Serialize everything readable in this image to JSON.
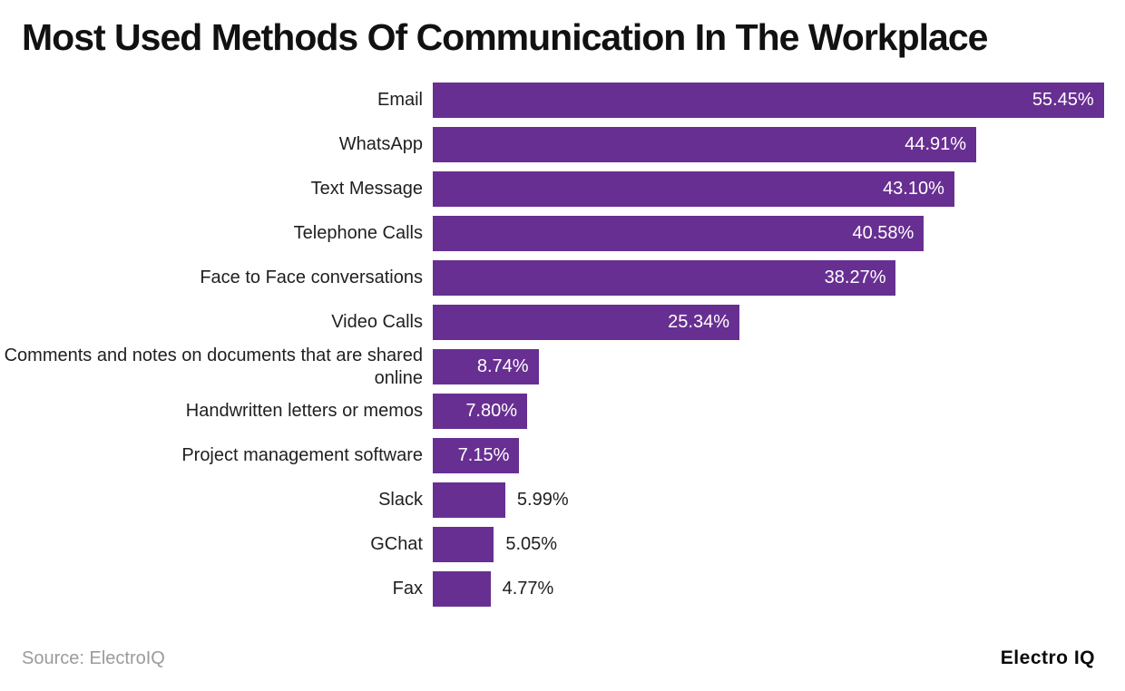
{
  "header": {
    "title": "Most Used Methods Of Communication In The Workplace"
  },
  "footer": {
    "source": "Source: ElectroIQ",
    "brand": "Electro IQ"
  },
  "colors": {
    "background": "#FFFFFF",
    "bar": "#682F92",
    "title": "#111111",
    "category_label": "#1F1F1F",
    "value_inside": "#FFFFFF",
    "value_outside": "#1F1F1F",
    "source": "#9B9B9B",
    "brand": "#0A0A0A"
  },
  "chart_data": {
    "type": "bar",
    "orientation": "horizontal",
    "title": "Most Used Methods Of Communication In The Workplace",
    "categories": [
      "Email",
      "WhatsApp",
      "Text Message",
      "Telephone Calls",
      "Face to Face conversations",
      "Video Calls",
      "Comments and notes on documents that are shared online",
      "Handwritten letters or memos",
      "Project management software",
      "Slack",
      "GChat",
      "Fax"
    ],
    "values": [
      55.45,
      44.91,
      43.1,
      40.58,
      38.27,
      25.34,
      8.74,
      7.8,
      7.15,
      5.99,
      5.05,
      4.77
    ],
    "value_labels": [
      "55.45%",
      "44.91%",
      "43.10%",
      "40.58%",
      "38.27%",
      "25.34%",
      "8.74%",
      "7.80%",
      "7.15%",
      "5.99%",
      "5.05%",
      "4.77%"
    ],
    "xlabel": "",
    "ylabel": "",
    "xlim": [
      0,
      57.2
    ],
    "grid": false,
    "legend": false,
    "value_label_inside_threshold": 7.0,
    "source": "ElectroIQ"
  }
}
